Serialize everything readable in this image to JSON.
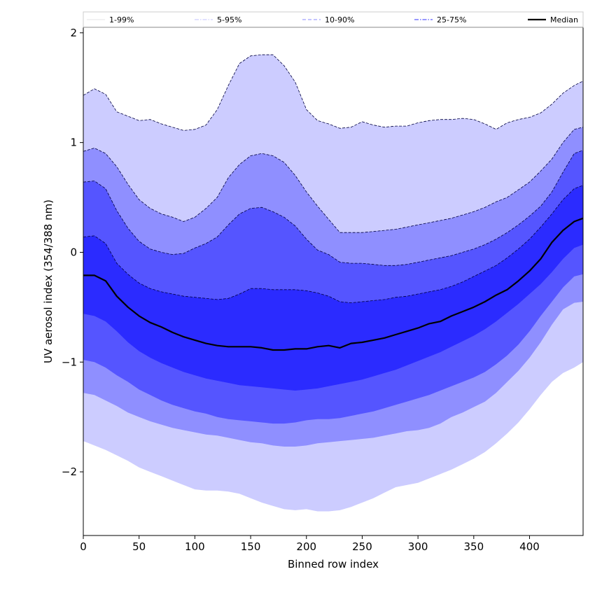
{
  "chart_data": {
    "type": "area",
    "title": "",
    "xlabel": "Binned row index",
    "ylabel": "UV aerosol index (354/388 nm)",
    "xlim": [
      0,
      448
    ],
    "ylim": [
      -2.58,
      2.05
    ],
    "xticks": [
      0,
      50,
      100,
      150,
      200,
      250,
      300,
      350,
      400
    ],
    "yticks": [
      2,
      1,
      0,
      -1,
      -2
    ],
    "ytick_labels": [
      "2",
      "1",
      "0",
      "−1",
      "−2"
    ],
    "grid": false,
    "legend_position": "top",
    "x": [
      0,
      10,
      20,
      30,
      40,
      50,
      60,
      70,
      80,
      90,
      100,
      110,
      120,
      130,
      140,
      150,
      160,
      170,
      180,
      190,
      200,
      210,
      220,
      230,
      240,
      250,
      260,
      270,
      280,
      290,
      300,
      310,
      320,
      330,
      340,
      350,
      360,
      370,
      380,
      390,
      400,
      410,
      420,
      430,
      440,
      448
    ],
    "bands": [
      {
        "name": "1-99%",
        "color": "#ccccff",
        "upper": [
          1.43,
          1.49,
          1.44,
          1.28,
          1.24,
          1.2,
          1.21,
          1.17,
          1.14,
          1.11,
          1.12,
          1.16,
          1.3,
          1.52,
          1.72,
          1.79,
          1.8,
          1.8,
          1.7,
          1.55,
          1.3,
          1.2,
          1.17,
          1.13,
          1.14,
          1.19,
          1.16,
          1.14,
          1.15,
          1.15,
          1.18,
          1.2,
          1.21,
          1.21,
          1.22,
          1.21,
          1.17,
          1.12,
          1.18,
          1.21,
          1.23,
          1.27,
          1.35,
          1.45,
          1.52,
          1.56
        ],
        "lower": [
          -1.72,
          -1.76,
          -1.8,
          -1.85,
          -1.9,
          -1.96,
          -2.0,
          -2.04,
          -2.08,
          -2.12,
          -2.16,
          -2.17,
          -2.17,
          -2.18,
          -2.2,
          -2.24,
          -2.28,
          -2.31,
          -2.34,
          -2.35,
          -2.34,
          -2.36,
          -2.36,
          -2.35,
          -2.32,
          -2.28,
          -2.24,
          -2.19,
          -2.14,
          -2.12,
          -2.1,
          -2.06,
          -2.02,
          -1.98,
          -1.93,
          -1.88,
          -1.82,
          -1.74,
          -1.65,
          -1.55,
          -1.43,
          -1.3,
          -1.18,
          -1.1,
          -1.05,
          -1.0
        ]
      },
      {
        "name": "5-95%",
        "color": "#8f8fff",
        "upper": [
          0.92,
          0.95,
          0.9,
          0.78,
          0.62,
          0.48,
          0.4,
          0.35,
          0.32,
          0.28,
          0.32,
          0.4,
          0.5,
          0.68,
          0.8,
          0.88,
          0.9,
          0.88,
          0.82,
          0.7,
          0.55,
          0.42,
          0.3,
          0.18,
          0.18,
          0.18,
          0.19,
          0.2,
          0.21,
          0.23,
          0.25,
          0.27,
          0.29,
          0.31,
          0.34,
          0.37,
          0.41,
          0.46,
          0.5,
          0.57,
          0.64,
          0.74,
          0.85,
          1.0,
          1.12,
          1.14
        ],
        "lower": [
          -1.28,
          -1.3,
          -1.35,
          -1.4,
          -1.46,
          -1.5,
          -1.54,
          -1.57,
          -1.6,
          -1.62,
          -1.64,
          -1.66,
          -1.67,
          -1.69,
          -1.71,
          -1.73,
          -1.74,
          -1.76,
          -1.77,
          -1.77,
          -1.76,
          -1.74,
          -1.73,
          -1.72,
          -1.71,
          -1.7,
          -1.69,
          -1.67,
          -1.65,
          -1.63,
          -1.62,
          -1.6,
          -1.56,
          -1.5,
          -1.46,
          -1.41,
          -1.36,
          -1.28,
          -1.18,
          -1.08,
          -0.96,
          -0.82,
          -0.66,
          -0.52,
          -0.46,
          -0.45
        ]
      },
      {
        "name": "10-90%",
        "color": "#5555ff",
        "upper": [
          0.64,
          0.65,
          0.58,
          0.38,
          0.22,
          0.1,
          0.03,
          0.0,
          -0.02,
          -0.01,
          0.04,
          0.08,
          0.14,
          0.25,
          0.35,
          0.4,
          0.41,
          0.37,
          0.32,
          0.24,
          0.12,
          0.02,
          -0.02,
          -0.09,
          -0.1,
          -0.1,
          -0.11,
          -0.12,
          -0.12,
          -0.11,
          -0.09,
          -0.07,
          -0.05,
          -0.03,
          0.0,
          0.03,
          0.07,
          0.12,
          0.18,
          0.25,
          0.33,
          0.42,
          0.55,
          0.73,
          0.9,
          0.93
        ],
        "lower": [
          -0.98,
          -1.0,
          -1.05,
          -1.12,
          -1.18,
          -1.25,
          -1.3,
          -1.35,
          -1.39,
          -1.42,
          -1.45,
          -1.47,
          -1.5,
          -1.52,
          -1.53,
          -1.54,
          -1.55,
          -1.56,
          -1.56,
          -1.55,
          -1.53,
          -1.52,
          -1.52,
          -1.51,
          -1.49,
          -1.47,
          -1.45,
          -1.42,
          -1.39,
          -1.36,
          -1.33,
          -1.3,
          -1.26,
          -1.22,
          -1.18,
          -1.14,
          -1.09,
          -1.02,
          -0.94,
          -0.84,
          -0.72,
          -0.58,
          -0.45,
          -0.32,
          -0.22,
          -0.2
        ]
      },
      {
        "name": "25-75%",
        "color": "#2b2bff",
        "upper": [
          0.14,
          0.15,
          0.08,
          -0.1,
          -0.2,
          -0.28,
          -0.33,
          -0.36,
          -0.38,
          -0.4,
          -0.41,
          -0.42,
          -0.43,
          -0.42,
          -0.38,
          -0.33,
          -0.33,
          -0.34,
          -0.34,
          -0.34,
          -0.35,
          -0.37,
          -0.4,
          -0.45,
          -0.46,
          -0.45,
          -0.44,
          -0.43,
          -0.41,
          -0.4,
          -0.38,
          -0.36,
          -0.34,
          -0.31,
          -0.27,
          -0.22,
          -0.17,
          -0.12,
          -0.05,
          0.03,
          0.12,
          0.23,
          0.35,
          0.48,
          0.58,
          0.61
        ],
        "lower": [
          -0.56,
          -0.58,
          -0.63,
          -0.72,
          -0.82,
          -0.9,
          -0.96,
          -1.01,
          -1.05,
          -1.09,
          -1.12,
          -1.15,
          -1.17,
          -1.19,
          -1.21,
          -1.22,
          -1.23,
          -1.24,
          -1.25,
          -1.26,
          -1.25,
          -1.24,
          -1.22,
          -1.2,
          -1.18,
          -1.16,
          -1.13,
          -1.1,
          -1.07,
          -1.03,
          -0.99,
          -0.95,
          -0.91,
          -0.86,
          -0.81,
          -0.76,
          -0.7,
          -0.63,
          -0.55,
          -0.47,
          -0.38,
          -0.29,
          -0.18,
          -0.06,
          0.04,
          0.07
        ]
      }
    ],
    "series": [
      {
        "name": "Median",
        "color": "#000000",
        "values": [
          -0.21,
          -0.21,
          -0.26,
          -0.4,
          -0.5,
          -0.58,
          -0.64,
          -0.68,
          -0.73,
          -0.77,
          -0.8,
          -0.83,
          -0.85,
          -0.86,
          -0.86,
          -0.86,
          -0.87,
          -0.89,
          -0.89,
          -0.88,
          -0.88,
          -0.86,
          -0.85,
          -0.87,
          -0.83,
          -0.82,
          -0.8,
          -0.78,
          -0.75,
          -0.72,
          -0.69,
          -0.65,
          -0.63,
          -0.58,
          -0.54,
          -0.5,
          -0.45,
          -0.39,
          -0.34,
          -0.26,
          -0.17,
          -0.06,
          0.09,
          0.2,
          0.28,
          0.31
        ]
      }
    ],
    "legend": [
      {
        "label": "1-99%",
        "color": "#cccccf",
        "style": "solid",
        "width": 0.6
      },
      {
        "label": "5-95%",
        "color": "#b0b0ff",
        "style": "dashdot",
        "width": 0.7
      },
      {
        "label": "10-90%",
        "color": "#8a8aff",
        "style": "dashed",
        "width": 1.0
      },
      {
        "label": "25-75%",
        "color": "#5a5aff",
        "style": "dashdot",
        "width": 1.3
      },
      {
        "label": "Median",
        "color": "#000000",
        "style": "solid",
        "width": 2.2
      }
    ]
  }
}
